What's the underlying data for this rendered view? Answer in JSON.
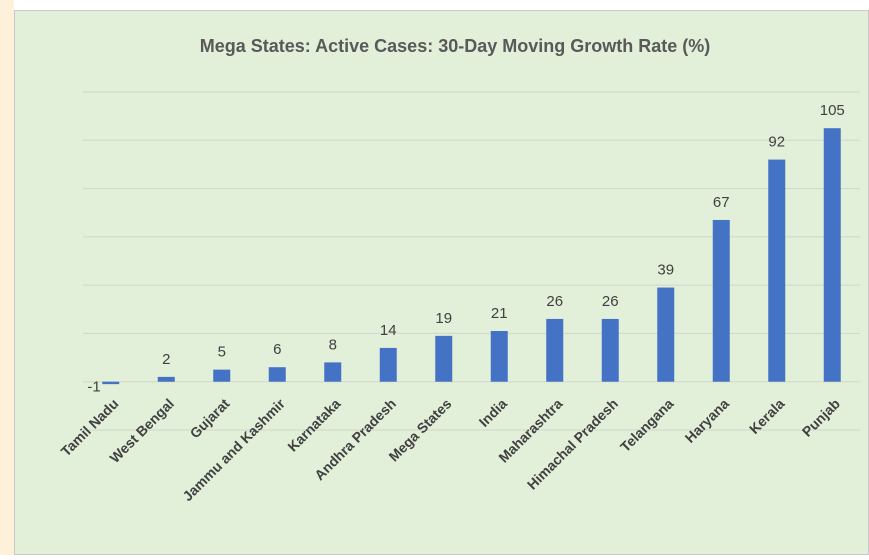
{
  "chart_data": {
    "type": "bar",
    "title": "Mega States: Active Cases: 30-Day Moving Growth Rate (%)",
    "categories": [
      "Tamil Nadu",
      "West Bengal",
      "Gujarat",
      "Jammu and Kashmir",
      "Karnataka",
      "Andhra Pradesh",
      "Mega States",
      "India",
      "Maharashtra",
      "Himachal Pradesh",
      "Telangana",
      "Haryana",
      "Kerala",
      "Punjab"
    ],
    "values": [
      -1,
      2,
      5,
      6,
      8,
      14,
      19,
      21,
      26,
      26,
      39,
      67,
      92,
      105
    ],
    "color": "#4472c4",
    "ylim": [
      -20,
      120
    ],
    "yticks": [
      -20,
      0,
      20,
      40,
      60,
      80,
      100,
      120
    ],
    "grid": true
  }
}
